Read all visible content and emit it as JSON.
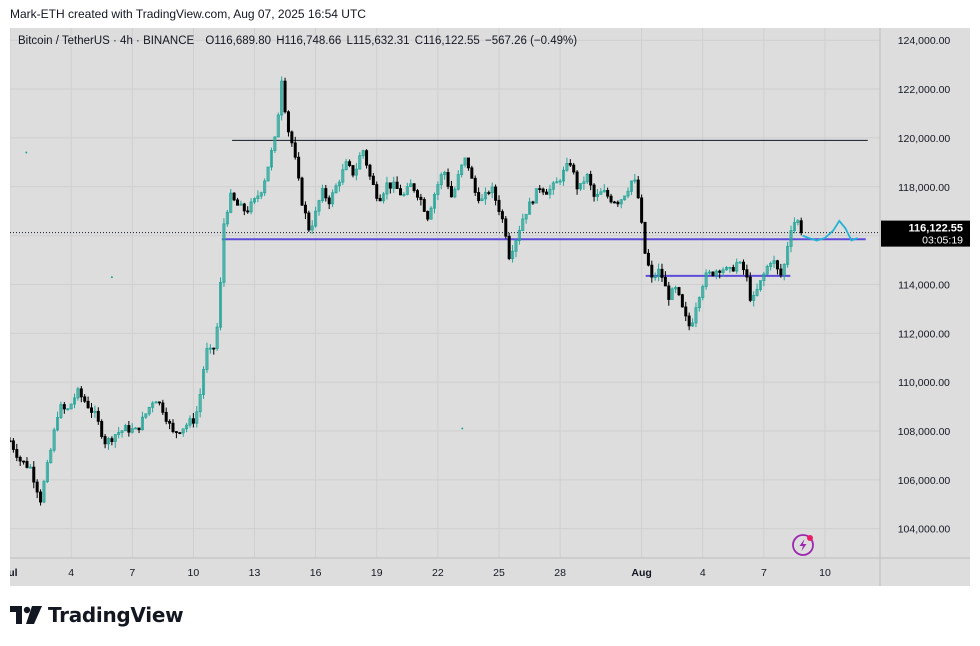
{
  "header": {
    "caption": "Mark-ETH created with TradingView.com, Aug 07, 2025 16:54 UTC"
  },
  "legend": {
    "symbol": "Bitcoin / TetherUS · 4h · BINANCE",
    "open": "O116,689.80",
    "high": "H116,748.66",
    "low": "L115,632.31",
    "close": "C116,122.55",
    "change": "−567.26 (−0.49%)"
  },
  "price_tag": {
    "price": "116,122.55",
    "countdown": "03:05:19"
  },
  "branding": {
    "logo_text": "TradingView"
  },
  "colors": {
    "background": "#dddddd",
    "up_candle": "#26a69a",
    "down_candle": "#000000",
    "support_line": "#5e4bd8",
    "resistance_line": "#131722",
    "projection": "#22b3d6",
    "price_tag_bg": "#000000",
    "snap_icon": "#9c27b0"
  },
  "chart_data": {
    "type": "candlestick",
    "y_axis_ticks": [
      "104,000.00",
      "106,000.00",
      "108,000.00",
      "110,000.00",
      "112,000.00",
      "114,000.00",
      "116,000.00",
      "118,000.00",
      "120,000.00",
      "122,000.00",
      "124,000.00"
    ],
    "y_axis_values": [
      104000,
      106000,
      108000,
      110000,
      112000,
      114000,
      116000,
      118000,
      120000,
      122000,
      124000
    ],
    "ylim": [
      102800,
      124500
    ],
    "x_axis_ticks": [
      {
        "label": "Jul",
        "day": 1,
        "bold": true
      },
      {
        "label": "4",
        "day": 4
      },
      {
        "label": "7",
        "day": 7
      },
      {
        "label": "10",
        "day": 10
      },
      {
        "label": "13",
        "day": 13
      },
      {
        "label": "16",
        "day": 16
      },
      {
        "label": "19",
        "day": 19
      },
      {
        "label": "22",
        "day": 22
      },
      {
        "label": "25",
        "day": 25
      },
      {
        "label": "28",
        "day": 28
      },
      {
        "label": "Aug",
        "day": 32,
        "bold": true
      },
      {
        "label": "4",
        "day": 35
      },
      {
        "label": "7",
        "day": 38
      },
      {
        "label": "10",
        "day": 41
      }
    ],
    "xlim_days": [
      1,
      43.7
    ],
    "grid": true,
    "last_price": 116122.55,
    "path_points": [
      [
        1.0,
        107600
      ],
      [
        1.5,
        106800
      ],
      [
        2.0,
        106500
      ],
      [
        2.5,
        105200
      ],
      [
        3.0,
        107200
      ],
      [
        3.4,
        109000
      ],
      [
        3.8,
        108800
      ],
      [
        4.3,
        109600
      ],
      [
        4.7,
        109200
      ],
      [
        5.2,
        108600
      ],
      [
        5.7,
        107500
      ],
      [
        6.2,
        107900
      ],
      [
        6.7,
        108100
      ],
      [
        7.2,
        108000
      ],
      [
        7.6,
        108600
      ],
      [
        8.1,
        109400
      ],
      [
        8.5,
        108900
      ],
      [
        9.0,
        107900
      ],
      [
        9.4,
        108100
      ],
      [
        9.9,
        108400
      ],
      [
        10.1,
        108500
      ],
      [
        10.4,
        109800
      ],
      [
        10.6,
        111300
      ],
      [
        10.9,
        111200
      ],
      [
        11.1,
        111600
      ],
      [
        11.3,
        113500
      ],
      [
        11.5,
        116500
      ],
      [
        11.8,
        117600
      ],
      [
        12.2,
        117200
      ],
      [
        12.6,
        117000
      ],
      [
        13.0,
        117400
      ],
      [
        13.4,
        118000
      ],
      [
        13.8,
        119300
      ],
      [
        14.1,
        120200
      ],
      [
        14.3,
        122700
      ],
      [
        14.6,
        120500
      ],
      [
        14.9,
        119600
      ],
      [
        15.3,
        117500
      ],
      [
        15.7,
        116200
      ],
      [
        16.0,
        116900
      ],
      [
        16.3,
        117800
      ],
      [
        16.7,
        117400
      ],
      [
        17.1,
        118200
      ],
      [
        17.5,
        118900
      ],
      [
        17.9,
        118500
      ],
      [
        18.3,
        119600
      ],
      [
        18.7,
        118300
      ],
      [
        19.1,
        117500
      ],
      [
        19.5,
        118100
      ],
      [
        19.9,
        118000
      ],
      [
        20.3,
        117600
      ],
      [
        20.7,
        118100
      ],
      [
        21.1,
        117600
      ],
      [
        21.5,
        116800
      ],
      [
        21.9,
        117900
      ],
      [
        22.3,
        118700
      ],
      [
        22.7,
        117500
      ],
      [
        23.1,
        118700
      ],
      [
        23.4,
        119200
      ],
      [
        23.8,
        117800
      ],
      [
        24.2,
        117400
      ],
      [
        24.6,
        118000
      ],
      [
        25.0,
        117100
      ],
      [
        25.3,
        116300
      ],
      [
        25.5,
        115200
      ],
      [
        25.8,
        115800
      ],
      [
        26.2,
        116800
      ],
      [
        26.6,
        117400
      ],
      [
        27.0,
        118000
      ],
      [
        27.4,
        117800
      ],
      [
        27.8,
        118100
      ],
      [
        28.1,
        118500
      ],
      [
        28.5,
        119000
      ],
      [
        28.9,
        117800
      ],
      [
        29.3,
        118500
      ],
      [
        29.7,
        117500
      ],
      [
        30.1,
        117800
      ],
      [
        30.5,
        117500
      ],
      [
        30.9,
        117400
      ],
      [
        31.3,
        117900
      ],
      [
        31.6,
        118400
      ],
      [
        31.9,
        117300
      ],
      [
        32.1,
        115500
      ],
      [
        32.5,
        114200
      ],
      [
        32.9,
        114600
      ],
      [
        33.3,
        113500
      ],
      [
        33.7,
        113800
      ],
      [
        34.1,
        112700
      ],
      [
        34.4,
        112200
      ],
      [
        34.7,
        113300
      ],
      [
        35.1,
        114300
      ],
      [
        35.5,
        114500
      ],
      [
        35.9,
        114700
      ],
      [
        36.3,
        114500
      ],
      [
        36.7,
        114900
      ],
      [
        37.1,
        114500
      ],
      [
        37.4,
        113200
      ],
      [
        37.7,
        113800
      ],
      [
        38.1,
        114600
      ],
      [
        38.4,
        115100
      ],
      [
        38.8,
        114300
      ],
      [
        39.0,
        114800
      ],
      [
        39.3,
        116300
      ],
      [
        39.6,
        116700
      ],
      [
        39.9,
        116100
      ]
    ],
    "resistance_line": {
      "price": 119900,
      "from_day": 11.9,
      "to_day": 43.1
    },
    "support_line_main": {
      "price": 115850,
      "from_day": 11.4,
      "to_day": 43.0
    },
    "support_line_local": {
      "price": 114350,
      "from_day": 32.2,
      "to_day": 39.3
    },
    "projection_path": [
      [
        39.9,
        116000
      ],
      [
        40.2,
        115900
      ],
      [
        40.6,
        115800
      ],
      [
        41.0,
        115900
      ],
      [
        41.4,
        116200
      ],
      [
        41.7,
        116600
      ],
      [
        42.0,
        116300
      ],
      [
        42.3,
        115800
      ],
      [
        42.6,
        115900
      ]
    ]
  }
}
